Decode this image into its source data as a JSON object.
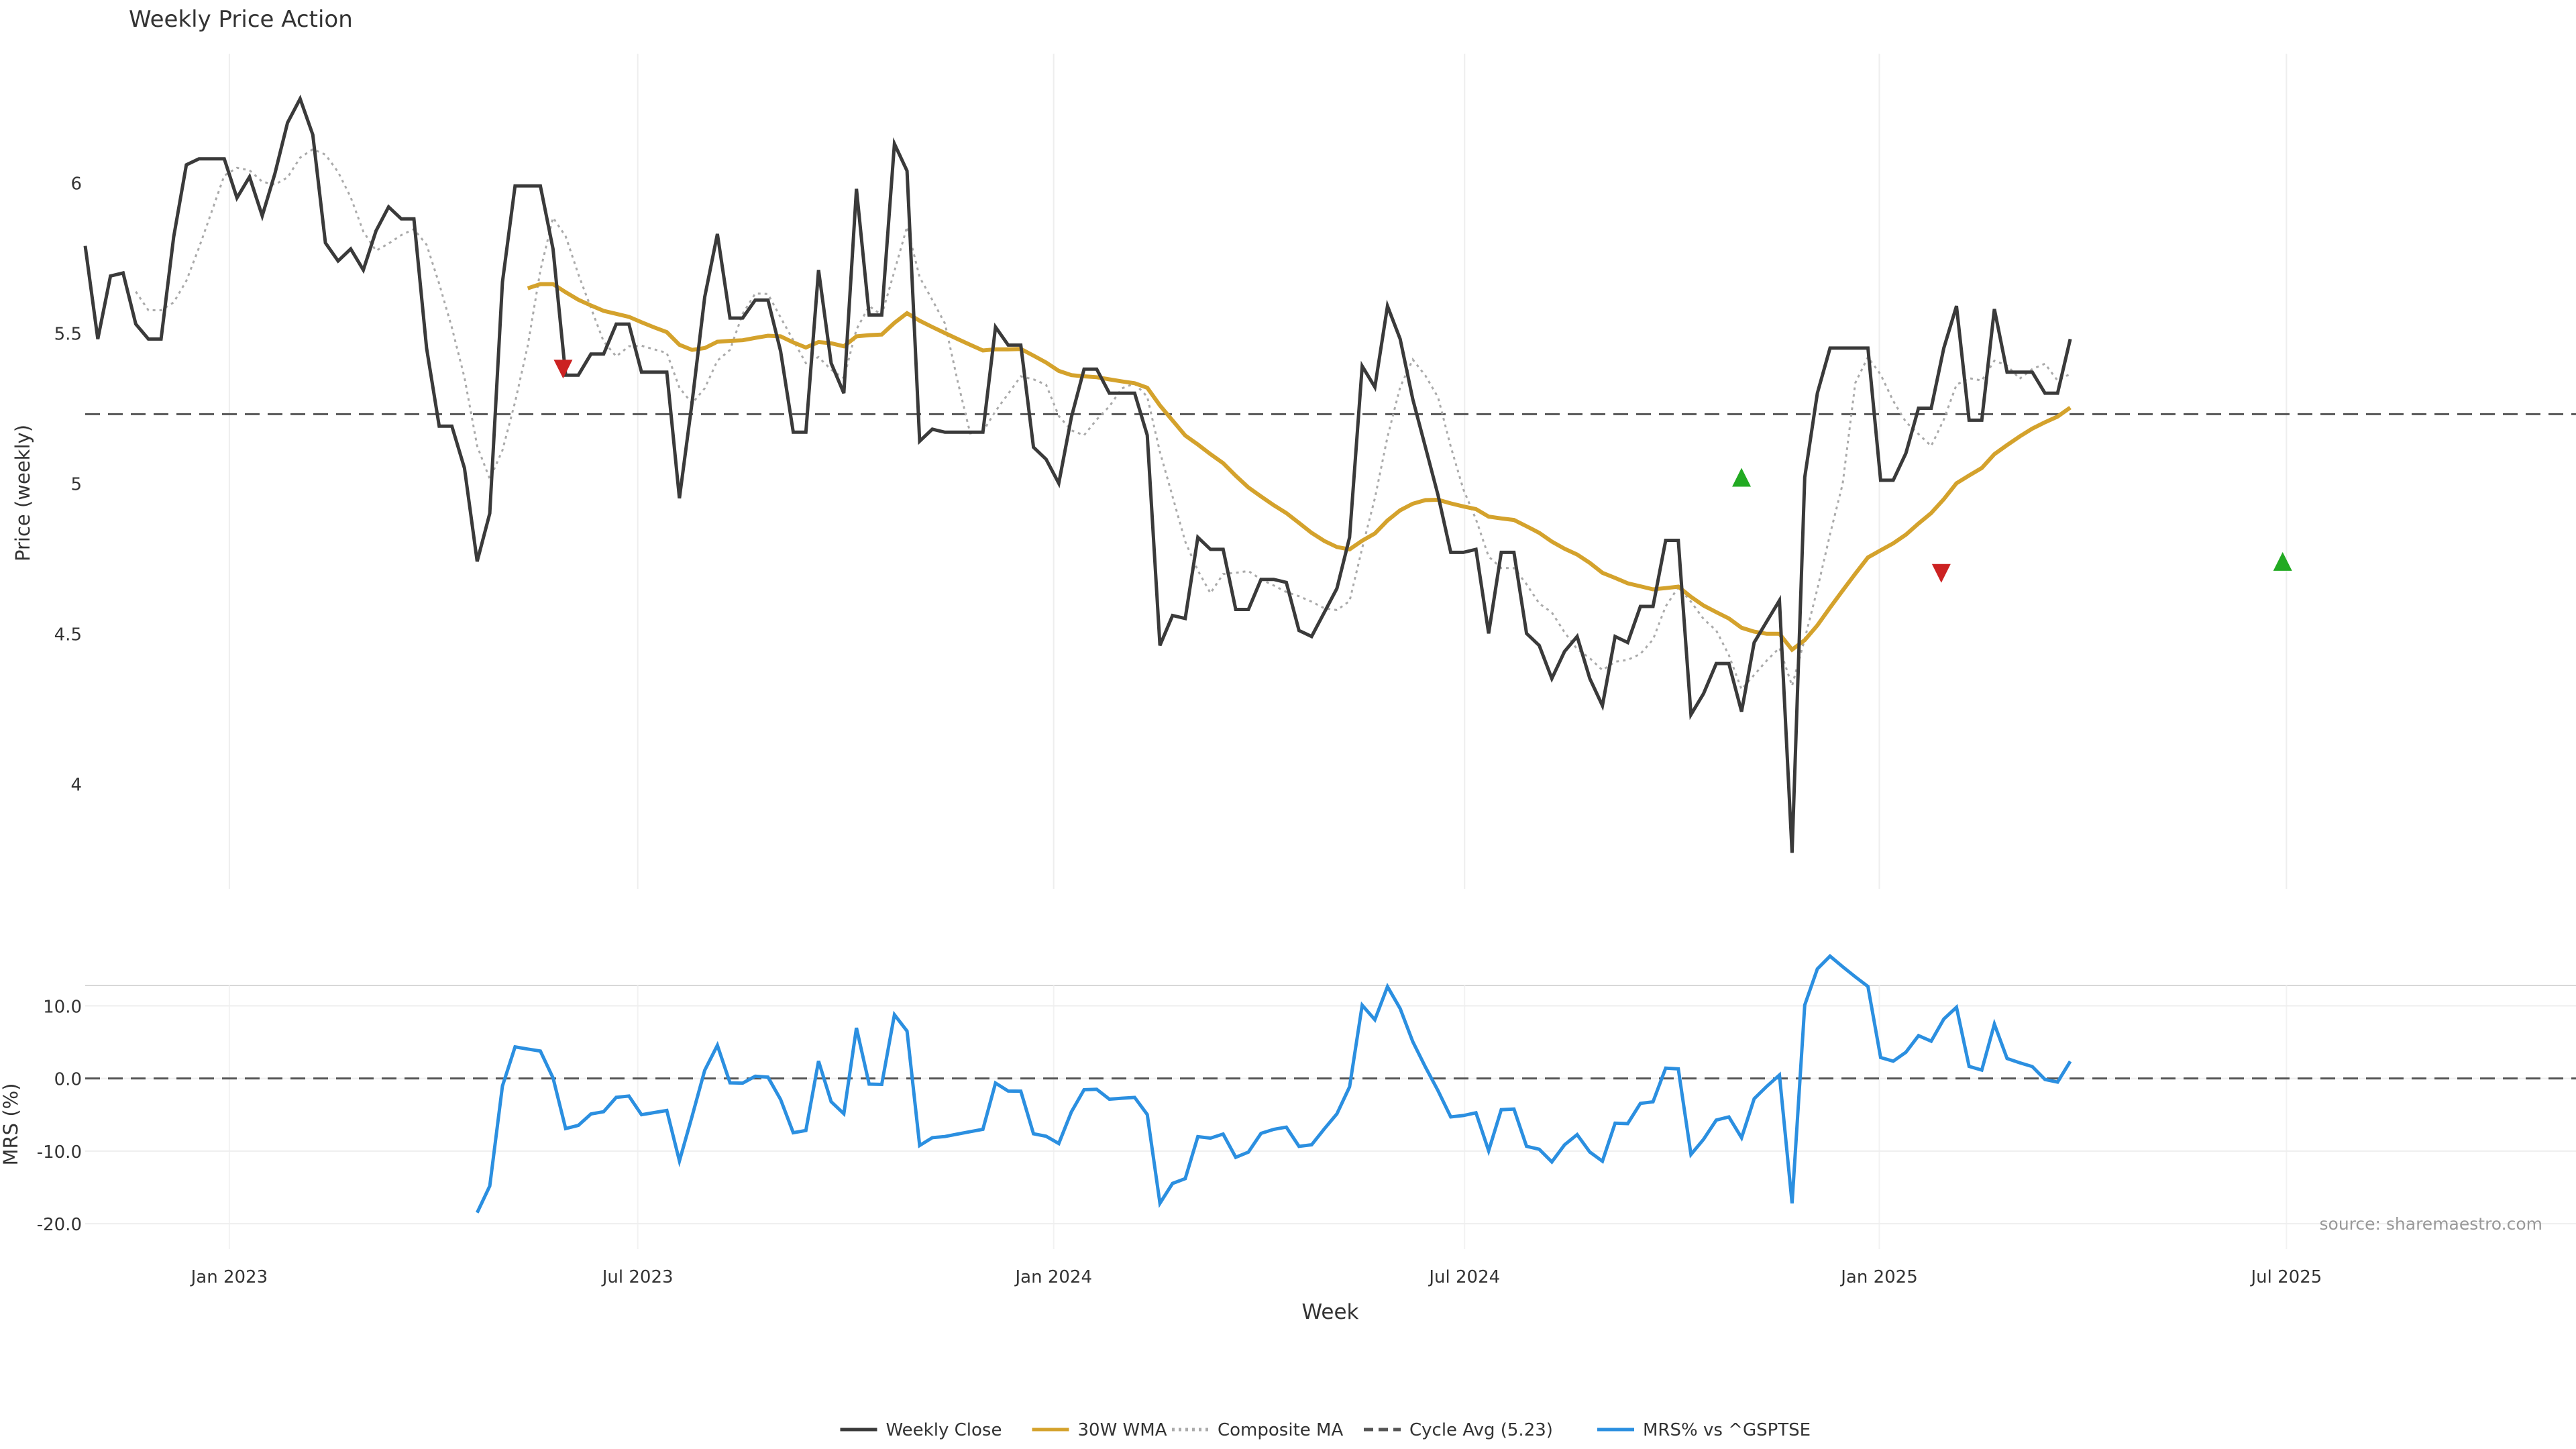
{
  "chart_data": [
    {
      "type": "line",
      "title": "Weekly Price Action",
      "ylabel": "Price (weekly)",
      "ylim": [
        3.65,
        6.43
      ],
      "yticks": [
        "4",
        "4.5",
        "5",
        "5.5",
        "6"
      ],
      "x_start": 0,
      "x_end": 197,
      "xticks": [
        {
          "x": 11.4,
          "label": "Jan 2023"
        },
        {
          "x": 43.7,
          "label": "Jul 2023"
        },
        {
          "x": 76.6,
          "label": "Jan 2024"
        },
        {
          "x": 109.1,
          "label": "Jul 2024"
        },
        {
          "x": 141.9,
          "label": "Jan 2025"
        },
        {
          "x": 174.1,
          "label": "Jul 2025"
        }
      ],
      "cycle_avg": 5.23,
      "series": [
        {
          "name": "Weekly Close",
          "color": "#3a3a3a",
          "values": [
            5.79,
            5.48,
            5.69,
            5.7,
            5.53,
            5.48,
            5.48,
            5.82,
            6.06,
            6.08,
            6.08,
            6.08,
            5.95,
            6.02,
            5.89,
            6.03,
            6.2,
            6.28,
            6.16,
            5.8,
            5.74,
            5.78,
            5.71,
            5.84,
            5.92,
            5.88,
            5.88,
            5.45,
            5.19,
            5.19,
            5.05,
            4.74,
            4.9,
            5.67,
            5.99,
            5.99,
            5.99,
            5.78,
            5.36,
            5.36,
            5.43,
            5.43,
            5.53,
            5.53,
            5.37,
            5.37,
            5.37,
            4.95,
            5.27,
            5.62,
            5.83,
            5.55,
            5.55,
            5.61,
            5.61,
            5.44,
            5.17,
            5.17,
            5.71,
            5.4,
            5.3,
            5.98,
            5.56,
            5.56,
            6.13,
            6.04,
            5.14,
            5.18,
            5.17,
            5.17,
            5.17,
            5.17,
            5.52,
            5.46,
            5.46,
            5.12,
            5.08,
            5.0,
            5.22,
            5.38,
            5.38,
            5.3,
            5.3,
            5.3,
            5.16,
            4.46,
            4.56,
            4.55,
            4.82,
            4.78,
            4.78,
            4.58,
            4.58,
            4.68,
            4.68,
            4.67,
            4.51,
            4.49,
            4.57,
            4.65,
            4.82,
            5.39,
            5.32,
            5.59,
            5.48,
            5.28,
            5.12,
            4.96,
            4.77,
            4.77,
            4.78,
            4.5,
            4.77,
            4.77,
            4.5,
            4.46,
            4.35,
            4.44,
            4.49,
            4.35,
            4.26,
            4.49,
            4.47,
            4.59,
            4.59,
            4.81,
            4.81,
            4.23,
            4.3,
            4.4,
            4.4,
            4.24,
            4.47,
            4.54,
            4.61,
            3.77,
            5.02,
            5.3,
            5.45,
            5.45,
            5.45,
            5.45,
            5.01,
            5.01,
            5.1,
            5.25,
            5.25,
            5.45,
            5.59,
            5.21,
            5.21,
            5.58,
            5.37,
            5.37,
            5.37,
            5.3,
            5.3,
            5.48
          ]
        },
        {
          "name": "30W WMA",
          "color": "#d4a22c",
          "values": [
            null,
            null,
            null,
            null,
            null,
            null,
            null,
            null,
            null,
            null,
            null,
            null,
            null,
            null,
            null,
            null,
            null,
            null,
            null,
            null,
            null,
            null,
            null,
            null,
            null,
            null,
            null,
            null,
            null,
            null,
            null,
            null,
            null,
            null,
            null,
            null,
            null,
            null,
            null,
            null,
            null,
            null,
            null,
            null,
            null,
            null,
            null,
            null,
            null,
            null,
            null,
            null,
            null,
            null,
            null,
            null,
            null,
            null,
            null,
            null,
            null,
            null,
            null,
            null,
            null,
            null,
            null,
            null,
            null,
            null,
            null,
            null,
            null,
            null,
            null,
            null,
            null,
            null,
            null,
            null,
            null,
            null,
            null,
            null,
            null,
            null,
            null,
            null,
            null,
            null,
            null,
            null,
            null,
            null,
            null,
            null,
            null,
            null,
            null,
            null,
            null,
            null,
            null,
            null,
            null,
            null,
            null,
            null,
            null,
            null,
            null,
            null,
            null,
            null,
            null,
            null,
            null,
            null,
            null,
            null,
            null,
            null,
            null,
            null,
            null,
            null,
            null,
            null,
            null,
            null,
            null,
            null,
            null,
            null,
            null,
            null,
            null,
            null,
            null,
            null,
            null,
            null,
            null,
            null,
            null,
            null,
            null,
            null,
            null,
            null,
            null,
            null,
            null,
            null,
            null,
            null,
            null,
            null,
            null,
            null,
            null,
            null,
            null,
            null,
            null,
            null,
            null,
            null,
            null,
            null,
            null,
            null,
            null,
            null,
            null,
            null,
            null,
            null,
            null
          ]
        },
        {
          "name": "Composite MA",
          "color": "#aaaaaa",
          "values": []
        },
        {
          "name": "MRS% vs ^GSPTSE",
          "color": "#2b8fe0",
          "values": []
        }
      ],
      "signals": [
        {
          "x": 37.8,
          "y": 5.38,
          "dir": "down",
          "color": "#cc2222"
        },
        {
          "x": 131.0,
          "y": 5.02,
          "dir": "up",
          "color": "#22aa22"
        },
        {
          "x": 146.8,
          "y": 4.7,
          "dir": "down",
          "color": "#cc2222"
        },
        {
          "x": 173.8,
          "y": 4.74,
          "dir": "up",
          "color": "#22aa22"
        }
      ]
    },
    {
      "type": "line",
      "ylabel": "MRS (%)",
      "ylim": [
        -23.5,
        12.8
      ],
      "yticks": [
        "-20.0",
        "-10.0",
        "0.0",
        "10.0"
      ],
      "xlabel": "Week",
      "source": "source: sharemaestro.com"
    }
  ],
  "legend": {
    "items": [
      {
        "label": "Weekly Close",
        "color": "#3a3a3a",
        "style": "solid"
      },
      {
        "label": "30W WMA",
        "color": "#d4a22c",
        "style": "solid"
      },
      {
        "label": "Composite MA",
        "color": "#aaaaaa",
        "style": "dotted"
      },
      {
        "label": "Cycle Avg (5.23)",
        "color": "#555555",
        "style": "dashed"
      },
      {
        "label": "MRS% vs ^GSPTSE",
        "color": "#2b8fe0",
        "style": "solid"
      }
    ]
  }
}
